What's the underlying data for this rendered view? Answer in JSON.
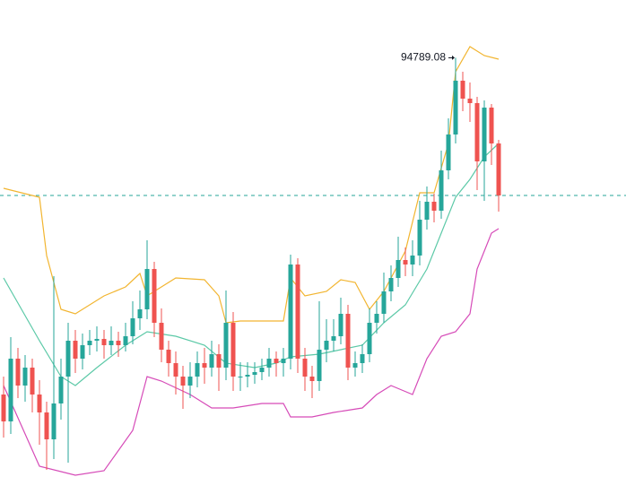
{
  "chart_data": {
    "type": "candlestick",
    "ylim": [
      83100,
      96400
    ],
    "up_color": "#26a69a",
    "down_color": "#ef5350",
    "last_price_line": true,
    "open": [
      85400,
      84650,
      86400,
      85650,
      86150,
      85400,
      84900,
      84150,
      85150,
      85900,
      86900,
      86400,
      86775,
      86900,
      86950,
      86775,
      86900,
      86775,
      87025,
      87525,
      87775,
      88900,
      87400,
      86650,
      86275,
      85900,
      85650,
      85900,
      86275,
      86150,
      86525,
      86150,
      87400,
      85900,
      85900,
      85950,
      86025,
      86150,
      86400,
      86275,
      86400,
      89025,
      86400,
      85900,
      85775,
      86650,
      86900,
      87025,
      87650,
      86150,
      86275,
      86525,
      87400,
      87650,
      88275,
      88650,
      89150,
      89025,
      89275,
      90275,
      90775,
      90525,
      91650,
      92650,
      94150,
      93650,
      93525,
      91900,
      93400,
      92400
    ],
    "high": [
      85900,
      87000,
      86700,
      86500,
      86400,
      85800,
      85200,
      88700,
      86400,
      87400,
      87200,
      87100,
      87200,
      87300,
      87200,
      87300,
      87150,
      87400,
      88000,
      88300,
      89700,
      89100,
      87800,
      86900,
      86600,
      86200,
      86300,
      86600,
      86700,
      86900,
      86800,
      88300,
      87700,
      86300,
      86300,
      86300,
      86400,
      86700,
      86600,
      86700,
      89300,
      89200,
      86700,
      86200,
      88000,
      87500,
      87500,
      88100,
      87900,
      86600,
      86800,
      87800,
      88000,
      88800,
      89000,
      89800,
      89500,
      89700,
      90800,
      91200,
      91000,
      92200,
      93100,
      94789.08,
      94400,
      94100,
      93700,
      93600,
      93500,
      92500
    ],
    "low": [
      84200,
      84300,
      85300,
      85200,
      84900,
      84000,
      83300,
      83600,
      84700,
      83500,
      86000,
      86100,
      86500,
      86600,
      86400,
      86500,
      86450,
      86600,
      86800,
      87200,
      87500,
      87000,
      86300,
      85900,
      85400,
      85000,
      85300,
      85600,
      85700,
      85900,
      85500,
      85800,
      85500,
      85500,
      85600,
      85700,
      85800,
      85900,
      85900,
      85900,
      86100,
      86000,
      85500,
      85300,
      85500,
      86300,
      86600,
      86800,
      85800,
      85900,
      86000,
      86300,
      87100,
      87400,
      88000,
      88400,
      88700,
      88700,
      89000,
      90000,
      90200,
      90300,
      91400,
      92400,
      93300,
      93000,
      91100,
      90800,
      91800,
      90500
    ],
    "close": [
      84650,
      86400,
      85650,
      86150,
      85400,
      84900,
      84150,
      85150,
      85900,
      86900,
      86400,
      86775,
      86900,
      86950,
      86775,
      86900,
      86775,
      87025,
      87525,
      87775,
      88900,
      87400,
      86650,
      86275,
      85900,
      85650,
      85900,
      86275,
      86150,
      86525,
      86150,
      87400,
      85900,
      85900,
      85950,
      86025,
      86150,
      86400,
      86275,
      86400,
      89025,
      86400,
      85900,
      85775,
      86650,
      86900,
      87025,
      87650,
      86150,
      86275,
      86525,
      87400,
      87650,
      88275,
      88650,
      89150,
      89025,
      89275,
      90275,
      90775,
      90525,
      91650,
      92650,
      94150,
      93650,
      93525,
      91900,
      93400,
      92400,
      90950
    ],
    "overlays": [
      {
        "color": "#f2b530",
        "x": [
          0,
          5,
          6,
          8,
          10,
          14,
          17,
          19,
          20,
          24,
          28,
          30,
          31,
          33,
          39,
          40,
          42,
          45,
          47,
          49,
          51,
          53,
          56,
          58,
          60,
          62,
          63,
          65,
          67,
          69
        ],
        "values": [
          91150,
          90900,
          89275,
          87775,
          87650,
          88150,
          88400,
          88775,
          88150,
          88650,
          88600,
          88150,
          87400,
          87450,
          87450,
          88650,
          88150,
          88275,
          88600,
          88525,
          87775,
          88275,
          89400,
          91025,
          91025,
          92400,
          94400,
          95100,
          94850,
          94750
        ]
      },
      {
        "color": "#5cc9a7",
        "x": [
          0,
          5,
          8,
          10,
          13,
          17,
          20,
          24,
          28,
          31,
          35,
          38,
          40,
          44,
          47,
          50,
          53,
          56,
          59,
          61,
          63,
          65,
          67,
          69
        ],
        "values": [
          88650,
          86900,
          85900,
          85650,
          86150,
          86775,
          87150,
          87025,
          86775,
          86275,
          86150,
          86275,
          86450,
          86525,
          86650,
          86775,
          87400,
          87900,
          88900,
          89900,
          90900,
          91400,
          92025,
          92400
        ]
      },
      {
        "color": "#d64bb8",
        "x": [
          0,
          5,
          10,
          14,
          18,
          20,
          22,
          26,
          29,
          32,
          36,
          39,
          40,
          43,
          46,
          50,
          52,
          54,
          57,
          59,
          61,
          63,
          65,
          66,
          68,
          69
        ],
        "values": [
          85650,
          83400,
          83150,
          83275,
          84400,
          85900,
          85775,
          85400,
          85025,
          85025,
          85150,
          85150,
          84775,
          84775,
          84900,
          85025,
          85400,
          85650,
          85400,
          86400,
          87025,
          87150,
          87650,
          88900,
          89900,
          90025
        ]
      }
    ]
  }
}
